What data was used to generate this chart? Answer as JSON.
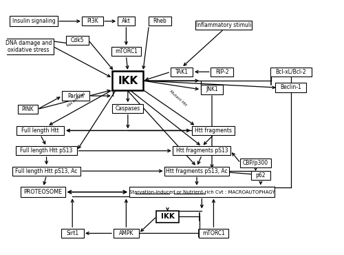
{
  "nodes": {
    "insulin": [
      0.08,
      0.92,
      "Insulin signaling",
      false,
      5.5,
      0.14,
      0.038
    ],
    "pi3k": [
      0.255,
      0.92,
      "PI3K",
      false,
      5.5,
      0.06,
      0.034
    ],
    "akt": [
      0.355,
      0.92,
      "Akt",
      false,
      5.5,
      0.05,
      0.034
    ],
    "rheb": [
      0.455,
      0.92,
      "Rheb",
      false,
      5.5,
      0.065,
      0.034
    ],
    "cdk5": [
      0.21,
      0.845,
      "Cdk5",
      false,
      5.5,
      0.065,
      0.034
    ],
    "dna": [
      0.065,
      0.82,
      "DNA damage and\noxidative stress",
      false,
      5.5,
      0.145,
      0.06
    ],
    "mtorc1_top": [
      0.355,
      0.8,
      "mTORC1",
      false,
      5.5,
      0.085,
      0.034
    ],
    "inflammatory": [
      0.645,
      0.905,
      "Inflammatory stimuli",
      false,
      5.5,
      0.165,
      0.034
    ],
    "ikk": [
      0.36,
      0.685,
      "IKK",
      true,
      11.0,
      0.09,
      0.072
    ],
    "tak1": [
      0.52,
      0.72,
      "TAK1",
      false,
      5.5,
      0.065,
      0.034
    ],
    "rip2": [
      0.64,
      0.72,
      "RIP-2",
      false,
      5.5,
      0.065,
      0.034
    ],
    "bcl": [
      0.845,
      0.72,
      "Bcl-xL/Bcl-2",
      false,
      5.5,
      0.12,
      0.034
    ],
    "beclin": [
      0.845,
      0.658,
      "Beclin-1",
      false,
      5.5,
      0.09,
      0.034
    ],
    "jnk1": [
      0.61,
      0.65,
      "JNK1",
      false,
      5.5,
      0.065,
      0.034
    ],
    "parkin": [
      0.205,
      0.625,
      "Parkin",
      false,
      5.5,
      0.08,
      0.034
    ],
    "pink": [
      0.062,
      0.572,
      "PINK",
      false,
      5.5,
      0.058,
      0.034
    ],
    "caspases": [
      0.36,
      0.575,
      "Caspases",
      false,
      5.5,
      0.09,
      0.034
    ],
    "full_htt": [
      0.1,
      0.488,
      "Full length Htt",
      false,
      5.5,
      0.14,
      0.034
    ],
    "htt_frag": [
      0.615,
      0.488,
      "Htt fragments",
      false,
      5.5,
      0.125,
      0.034
    ],
    "full_ps13": [
      0.118,
      0.408,
      "Full length Htt pS13",
      false,
      5.5,
      0.18,
      0.034
    ],
    "htt_frag_ps13": [
      0.58,
      0.408,
      "Htt fragments pS13",
      false,
      5.5,
      0.17,
      0.034
    ],
    "cbp": [
      0.74,
      0.36,
      "CBP/p300",
      false,
      5.5,
      0.09,
      0.034
    ],
    "full_ps13ac": [
      0.118,
      0.328,
      "Full length Htt pS13, Ac",
      false,
      5.5,
      0.2,
      0.034
    ],
    "htt_frag_ps13ac": [
      0.565,
      0.328,
      "Htt fragments pS13, Ac",
      false,
      5.5,
      0.19,
      0.034
    ],
    "p62": [
      0.755,
      0.31,
      "p62",
      false,
      5.5,
      0.055,
      0.034
    ],
    "proteasome": [
      0.108,
      0.245,
      "PROTEOSOME",
      false,
      5.8,
      0.13,
      0.038
    ],
    "macro": [
      0.58,
      0.245,
      "Starvation-induced or Nutrient-rich Cvt : MACROAUTOPHAGY",
      false,
      5.0,
      0.43,
      0.038
    ],
    "ikk2": [
      0.478,
      0.148,
      "IKK",
      true,
      7.5,
      0.065,
      0.044
    ],
    "ampk": [
      0.355,
      0.082,
      "AMPK",
      false,
      5.5,
      0.075,
      0.034
    ],
    "sirt1": [
      0.195,
      0.082,
      "Sirt1",
      false,
      5.5,
      0.065,
      0.034
    ],
    "mtorc1b": [
      0.615,
      0.082,
      "mTORC1",
      false,
      5.5,
      0.085,
      0.034
    ]
  },
  "bg": "white",
  "underlines": [
    [
      0.38,
      0.24,
      0.495,
      0.24
    ],
    [
      0.51,
      0.24,
      0.62,
      0.24
    ]
  ]
}
